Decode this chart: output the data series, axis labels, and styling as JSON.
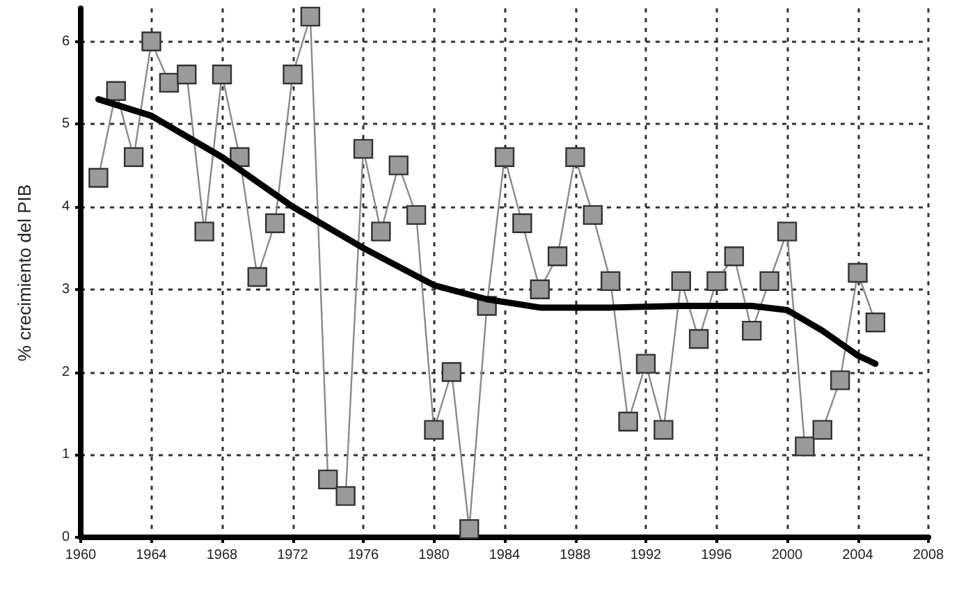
{
  "chart_data": {
    "type": "line",
    "ylabel": "% crecimiento del PIB",
    "xlim": [
      1960,
      2008
    ],
    "xticks": [
      1960,
      1964,
      1968,
      1972,
      1976,
      1980,
      1984,
      1988,
      1992,
      1996,
      2000,
      2004,
      2008
    ],
    "ylim": [
      0,
      6.4
    ],
    "yticks": [
      0,
      1,
      2,
      3,
      4,
      5,
      6
    ],
    "grid": true,
    "marker": "square",
    "series": [
      {
        "color": "#9a9a9a",
        "x": [
          1961,
          1962,
          1963,
          1964,
          1965,
          1966,
          1967,
          1968,
          1969,
          1970,
          1971,
          1972,
          1973,
          1974,
          1975,
          1976,
          1977,
          1978,
          1979,
          1980,
          1981,
          1982,
          1983,
          1984,
          1985,
          1986,
          1987,
          1988,
          1989,
          1990,
          1991,
          1992,
          1993,
          1994,
          1995,
          1996,
          1997,
          1998,
          1999,
          2000,
          2001,
          2002,
          2003,
          2004,
          2005
        ],
        "values": [
          4.35,
          5.4,
          4.6,
          6.0,
          5.5,
          5.6,
          3.7,
          5.6,
          4.6,
          3.15,
          3.8,
          5.6,
          6.3,
          0.7,
          0.5,
          4.7,
          3.7,
          4.5,
          3.9,
          1.3,
          2.0,
          0.1,
          2.8,
          4.6,
          3.8,
          3.0,
          3.4,
          4.6,
          3.9,
          3.1,
          1.4,
          2.1,
          1.3,
          3.1,
          2.4,
          3.1,
          3.4,
          2.5,
          3.1,
          3.7,
          1.1,
          1.3,
          1.9,
          3.2,
          2.6
        ]
      },
      {
        "color": "#000000",
        "marker": "none",
        "x": [
          1961,
          1964,
          1968,
          1972,
          1976,
          1980,
          1983,
          1986,
          1990,
          1994,
          1998,
          2000,
          2002,
          2004,
          2005
        ],
        "values": [
          5.3,
          5.1,
          4.6,
          4.0,
          3.5,
          3.05,
          2.88,
          2.78,
          2.78,
          2.8,
          2.8,
          2.75,
          2.5,
          2.2,
          2.1
        ]
      }
    ]
  }
}
